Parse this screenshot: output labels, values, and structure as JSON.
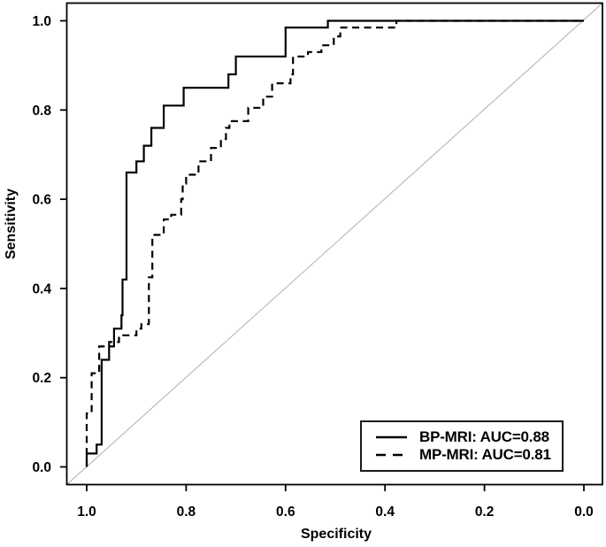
{
  "chart_data": {
    "type": "line",
    "subtype": "roc-curve",
    "title": "",
    "xlabel": "Specificity",
    "ylabel": "Sensitivity",
    "x_ticks": [
      "1.0",
      "0.8",
      "0.6",
      "0.4",
      "0.2",
      "0.0"
    ],
    "y_ticks": [
      "0.0",
      "0.2",
      "0.4",
      "0.6",
      "0.8",
      "1.0"
    ],
    "x_axis_reversed": true,
    "xlim": [
      1.0,
      0.0
    ],
    "ylim": [
      0.0,
      1.0
    ],
    "grid": false,
    "diagonal_reference_line": true,
    "legend_position": "bottom-right",
    "colors": {
      "curve": "#000000",
      "diagonal": "#bcbcbc",
      "axis": "#000000",
      "text": "#000000",
      "legend_border": "#1b1b1b",
      "background": "#ffffff"
    },
    "series": [
      {
        "name": "BP-MRI: AUC=0.88",
        "auc": 0.88,
        "line_style": "solid",
        "color": "#000000",
        "points": [
          [
            1.0,
            0.0
          ],
          [
            1.0,
            0.03
          ],
          [
            0.98,
            0.03
          ],
          [
            0.98,
            0.05
          ],
          [
            0.97,
            0.05
          ],
          [
            0.97,
            0.24
          ],
          [
            0.955,
            0.24
          ],
          [
            0.955,
            0.27
          ],
          [
            0.945,
            0.27
          ],
          [
            0.945,
            0.31
          ],
          [
            0.93,
            0.31
          ],
          [
            0.93,
            0.34
          ],
          [
            0.928,
            0.34
          ],
          [
            0.928,
            0.42
          ],
          [
            0.92,
            0.42
          ],
          [
            0.92,
            0.66
          ],
          [
            0.9,
            0.66
          ],
          [
            0.9,
            0.685
          ],
          [
            0.885,
            0.685
          ],
          [
            0.885,
            0.72
          ],
          [
            0.87,
            0.72
          ],
          [
            0.87,
            0.76
          ],
          [
            0.845,
            0.76
          ],
          [
            0.845,
            0.81
          ],
          [
            0.805,
            0.81
          ],
          [
            0.805,
            0.85
          ],
          [
            0.715,
            0.85
          ],
          [
            0.715,
            0.88
          ],
          [
            0.7,
            0.88
          ],
          [
            0.7,
            0.92
          ],
          [
            0.6,
            0.92
          ],
          [
            0.6,
            0.985
          ],
          [
            0.515,
            0.985
          ],
          [
            0.515,
            1.0
          ],
          [
            0.0,
            1.0
          ]
        ]
      },
      {
        "name": "MP-MRI: AUC=0.81",
        "auc": 0.81,
        "line_style": "dashed",
        "color": "#000000",
        "points": [
          [
            1.0,
            0.0
          ],
          [
            1.0,
            0.12
          ],
          [
            0.99,
            0.12
          ],
          [
            0.99,
            0.21
          ],
          [
            0.975,
            0.21
          ],
          [
            0.975,
            0.27
          ],
          [
            0.955,
            0.27
          ],
          [
            0.955,
            0.28
          ],
          [
            0.935,
            0.28
          ],
          [
            0.935,
            0.295
          ],
          [
            0.9,
            0.295
          ],
          [
            0.9,
            0.31
          ],
          [
            0.89,
            0.31
          ],
          [
            0.89,
            0.32
          ],
          [
            0.875,
            0.32
          ],
          [
            0.875,
            0.425
          ],
          [
            0.868,
            0.425
          ],
          [
            0.868,
            0.52
          ],
          [
            0.845,
            0.52
          ],
          [
            0.845,
            0.555
          ],
          [
            0.83,
            0.555
          ],
          [
            0.83,
            0.565
          ],
          [
            0.81,
            0.565
          ],
          [
            0.81,
            0.6
          ],
          [
            0.807,
            0.6
          ],
          [
            0.807,
            0.635
          ],
          [
            0.8,
            0.635
          ],
          [
            0.8,
            0.655
          ],
          [
            0.775,
            0.655
          ],
          [
            0.775,
            0.685
          ],
          [
            0.75,
            0.685
          ],
          [
            0.75,
            0.715
          ],
          [
            0.73,
            0.715
          ],
          [
            0.73,
            0.735
          ],
          [
            0.72,
            0.735
          ],
          [
            0.72,
            0.76
          ],
          [
            0.713,
            0.76
          ],
          [
            0.713,
            0.775
          ],
          [
            0.675,
            0.775
          ],
          [
            0.675,
            0.805
          ],
          [
            0.645,
            0.805
          ],
          [
            0.645,
            0.83
          ],
          [
            0.627,
            0.83
          ],
          [
            0.627,
            0.86
          ],
          [
            0.59,
            0.86
          ],
          [
            0.59,
            0.88
          ],
          [
            0.585,
            0.88
          ],
          [
            0.585,
            0.92
          ],
          [
            0.555,
            0.92
          ],
          [
            0.555,
            0.93
          ],
          [
            0.528,
            0.93
          ],
          [
            0.528,
            0.945
          ],
          [
            0.503,
            0.945
          ],
          [
            0.503,
            0.965
          ],
          [
            0.49,
            0.965
          ],
          [
            0.49,
            0.985
          ],
          [
            0.377,
            0.985
          ],
          [
            0.377,
            1.0
          ],
          [
            0.0,
            1.0
          ]
        ]
      }
    ]
  }
}
